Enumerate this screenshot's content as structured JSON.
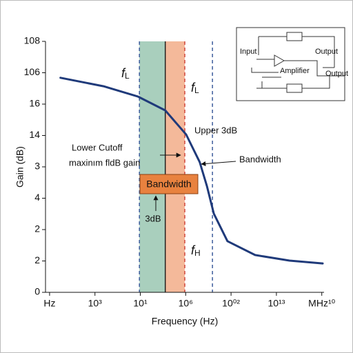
{
  "chart_data": {
    "type": "line",
    "ylabel": "Gain (dB)",
    "xlabel": "Frequency (Hz)",
    "xlim": [
      -0.09,
      6.05
    ],
    "ylim": [
      0,
      8
    ],
    "xticks": [
      {
        "value": 0,
        "label": "Hz"
      },
      {
        "value": 1,
        "label": "10³"
      },
      {
        "value": 2,
        "label": "10¹"
      },
      {
        "value": 3,
        "label": "10⁶"
      },
      {
        "value": 4,
        "label": "10⁰²"
      },
      {
        "value": 5,
        "label": "10¹³"
      },
      {
        "value": 6,
        "label": "MHz¹⁰"
      }
    ],
    "yticks": [
      {
        "value": 0,
        "label": "0"
      },
      {
        "value": 1,
        "label": "2"
      },
      {
        "value": 2,
        "label": "2"
      },
      {
        "value": 3,
        "label": "4"
      },
      {
        "value": 4,
        "label": "3"
      },
      {
        "value": 5,
        "label": "14"
      },
      {
        "value": 6,
        "label": "16"
      },
      {
        "value": 7,
        "label": "106"
      },
      {
        "value": 8,
        "label": "108"
      }
    ],
    "series": [
      {
        "color": "#1f3a7a",
        "x": [
          0.24,
          1.19,
          1.95,
          2.55,
          3.01,
          3.31,
          3.47,
          3.62,
          3.92,
          4.53,
          5.29,
          6.02
        ],
        "values": [
          6.84,
          6.57,
          6.24,
          5.8,
          5.03,
          4.15,
          3.38,
          2.51,
          1.63,
          1.19,
          1.01,
          0.92
        ]
      }
    ],
    "bands": [
      {
        "x": [
          1.98,
          2.55
        ],
        "color": "#a9cfbd"
      },
      {
        "x": [
          2.55,
          2.98
        ],
        "color": "#f4b99a"
      }
    ],
    "vlines": [
      {
        "x": 1.98,
        "color": "#3d5c9c",
        "dashed": true
      },
      {
        "x": 2.55,
        "color": "#222222",
        "dashed": false
      },
      {
        "x": 2.98,
        "color": "#d0453a",
        "dashed": true
      },
      {
        "x": 3.59,
        "color": "#3d5c9c",
        "dashed": true
      }
    ],
    "annotations": {
      "fL1": {
        "text": "f",
        "sub": "L"
      },
      "fL2": {
        "text": "f",
        "sub": "L"
      },
      "fH": {
        "text": "f",
        "sub": "H"
      },
      "upper": "Upper 3dB",
      "lower": "Lower Cutoff",
      "max": "maxinım fldB gain",
      "bandwidth": "Bandwidth",
      "box": "Bandwidth",
      "db": "3dB"
    },
    "inset": {
      "input": "Input",
      "output1": "Output",
      "amplifier": "Amplifier",
      "output2": "Output"
    }
  }
}
